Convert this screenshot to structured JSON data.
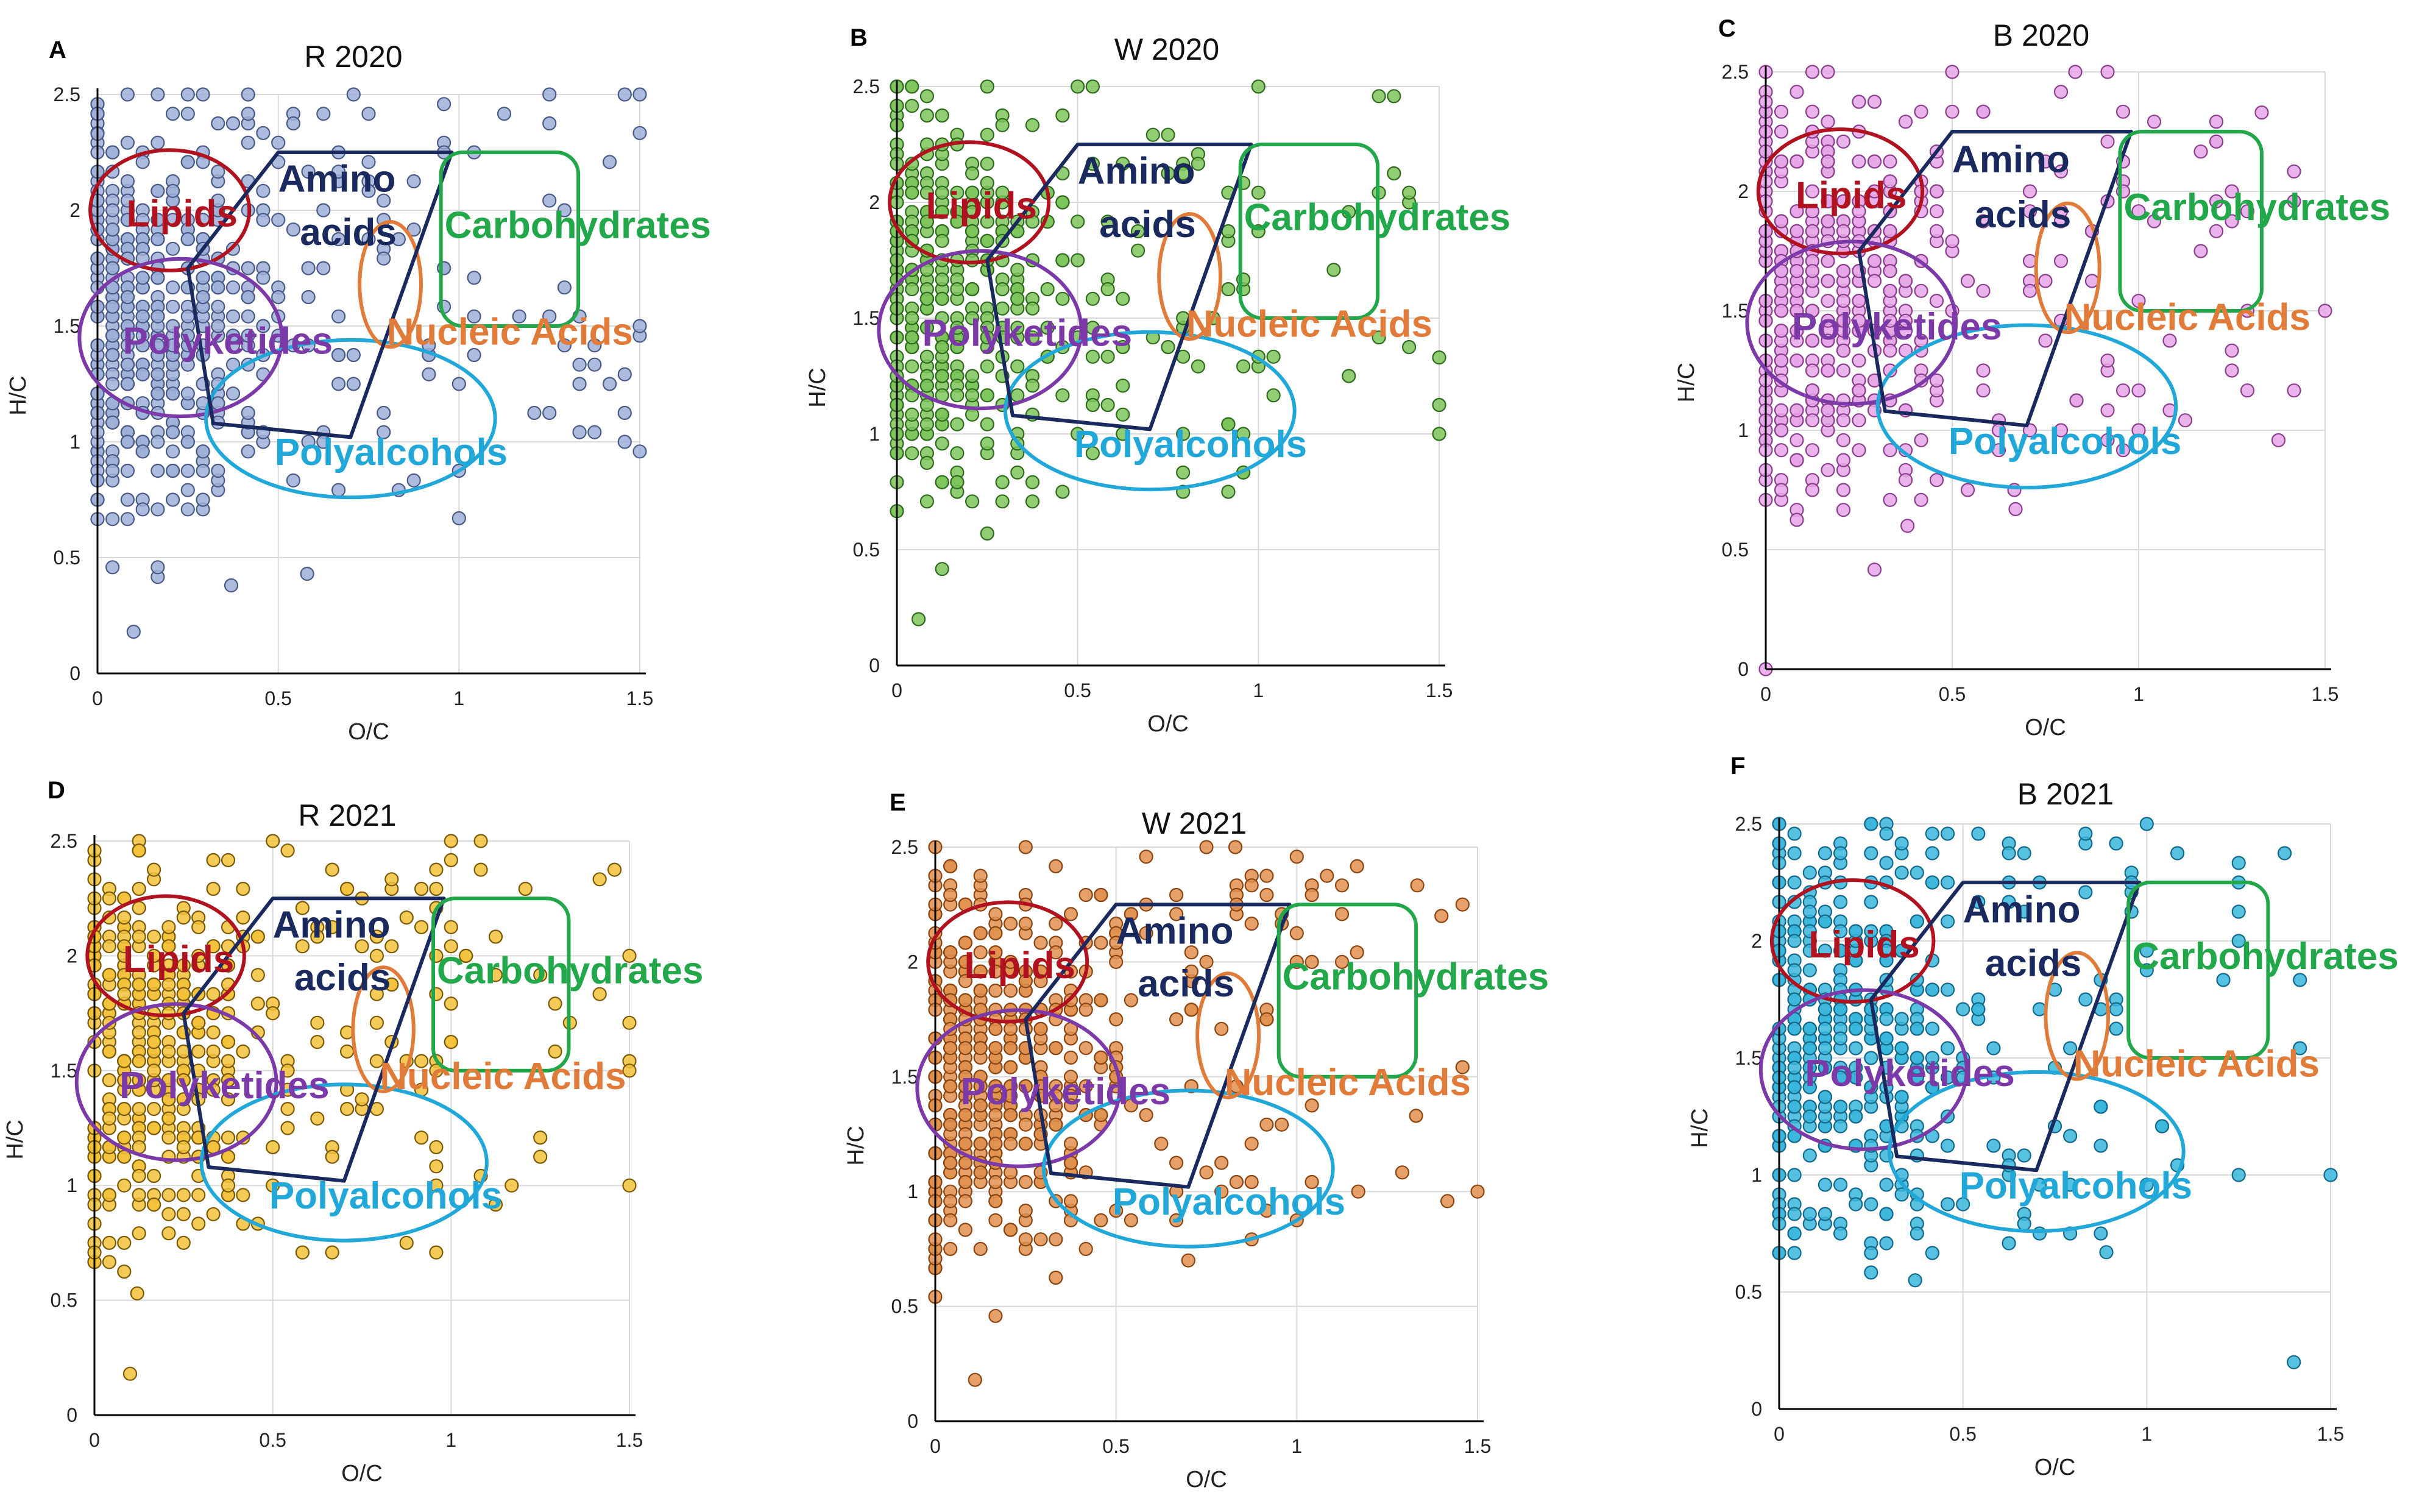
{
  "figure": {
    "description_label": "Van Krevelen diagrams"
  },
  "regions": [
    {
      "key": "lipids",
      "label": "Lipids",
      "color": "#b1121f"
    },
    {
      "key": "amino",
      "label_line1": "Amino",
      "label_line2": "acids",
      "color": "#1b2a5e"
    },
    {
      "key": "carbohydrates",
      "label": "Carbohydrates",
      "color": "#22a84a"
    },
    {
      "key": "nucleic",
      "label": "Nucleic Acids",
      "color": "#e07b39"
    },
    {
      "key": "polyketides",
      "label": "Polyketides",
      "color": "#7b3aa8"
    },
    {
      "key": "polyalcohols",
      "label": "Polyalcohols",
      "color": "#22a8d8"
    }
  ],
  "chart_data": [
    {
      "panel": "A",
      "title": "R 2020",
      "type": "scatter",
      "xlabel": "O/C",
      "ylabel": "H/C",
      "xlim": [
        0,
        1.5
      ],
      "ylim": [
        0,
        2.5
      ],
      "xticks": [
        "0",
        "0.5",
        "1",
        "1.5"
      ],
      "yticks": [
        "0",
        "0.5",
        "1",
        "1.5",
        "2",
        "2.5"
      ],
      "marker_fill": "#9fb0d8",
      "marker_edge": "#4a5a86",
      "n_points": 560,
      "seed": 11,
      "points_sample": [
        [
          0.1,
          0.18
        ],
        [
          0.37,
          0.38
        ],
        [
          0.58,
          0.43
        ],
        [
          1.5,
          2.5
        ],
        [
          1.5,
          1.5
        ],
        [
          1.0,
          0.67
        ],
        [
          0.0,
          2.33
        ],
        [
          0.25,
          2.5
        ]
      ]
    },
    {
      "panel": "B",
      "title": "W 2020",
      "type": "scatter",
      "xlabel": "O/C",
      "ylabel": "H/C",
      "xlim": [
        0,
        1.5
      ],
      "ylim": [
        0,
        2.5
      ],
      "xticks": [
        "0",
        "0.5",
        "1",
        "1.5"
      ],
      "yticks": [
        "0",
        "0.5",
        "1",
        "1.5",
        "2",
        "2.5"
      ],
      "marker_fill": "#7cc45a",
      "marker_edge": "#2f6b1e",
      "n_points": 420,
      "seed": 23,
      "points_sample": [
        [
          0.06,
          0.2
        ],
        [
          0.0,
          2.5
        ],
        [
          0.5,
          2.5
        ],
        [
          1.0,
          2.5
        ],
        [
          1.5,
          1.33
        ],
        [
          1.5,
          1.0
        ],
        [
          1.25,
          1.25
        ],
        [
          0.25,
          0.57
        ]
      ]
    },
    {
      "panel": "C",
      "title": "B 2020",
      "type": "scatter",
      "xlabel": "O/C",
      "ylabel": "H/C",
      "xlim": [
        0,
        1.5
      ],
      "ylim": [
        0,
        2.5
      ],
      "xticks": [
        "0",
        "0.5",
        "1",
        "1.5"
      ],
      "yticks": [
        "0",
        "0.5",
        "1",
        "1.5",
        "2",
        "2.5"
      ],
      "marker_fill": "#e6a6e8",
      "marker_edge": "#8a3f8c",
      "n_points": 480,
      "seed": 37,
      "points_sample": [
        [
          0.0,
          0.0
        ],
        [
          0.5,
          2.5
        ],
        [
          0.83,
          2.5
        ],
        [
          1.33,
          2.33
        ],
        [
          1.5,
          1.5
        ],
        [
          1.25,
          1.25
        ],
        [
          0.67,
          0.67
        ],
        [
          0.38,
          0.6
        ]
      ]
    },
    {
      "panel": "D",
      "title": "R 2021",
      "type": "scatter",
      "xlabel": "O/C",
      "ylabel": "H/C",
      "xlim": [
        0,
        1.5
      ],
      "ylim": [
        0,
        2.5
      ],
      "xticks": [
        "0",
        "0.5",
        "1",
        "1.5"
      ],
      "yticks": [
        "0",
        "0.5",
        "1",
        "1.5",
        "2",
        "2.5"
      ],
      "marker_fill": "#f2c23a",
      "marker_edge": "#7a5a08",
      "n_points": 430,
      "seed": 41,
      "points_sample": [
        [
          0.1,
          0.18
        ],
        [
          1.5,
          1.0
        ],
        [
          1.5,
          1.5
        ],
        [
          1.0,
          2.5
        ],
        [
          0.5,
          2.5
        ],
        [
          1.5,
          2.0
        ],
        [
          1.17,
          1.0
        ],
        [
          0.12,
          0.53
        ]
      ]
    },
    {
      "panel": "E",
      "title": "W 2021",
      "type": "scatter",
      "xlabel": "O/C",
      "ylabel": "H/C",
      "xlim": [
        0,
        1.5
      ],
      "ylim": [
        0,
        2.5
      ],
      "xticks": [
        "0",
        "0.5",
        "1",
        "1.5"
      ],
      "yticks": [
        "0",
        "0.5",
        "1",
        "1.5",
        "2",
        "2.5"
      ],
      "marker_fill": "#e0904f",
      "marker_edge": "#8a4512",
      "n_points": 520,
      "seed": 53,
      "points_sample": [
        [
          0.11,
          0.18
        ],
        [
          1.5,
          1.0
        ],
        [
          0.0,
          2.5
        ],
        [
          0.83,
          2.5
        ],
        [
          1.4,
          2.2
        ],
        [
          1.33,
          1.33
        ],
        [
          0.7,
          0.7
        ],
        [
          1.17,
          1.0
        ]
      ]
    },
    {
      "panel": "F",
      "title": "B 2021",
      "type": "scatter",
      "xlabel": "O/C",
      "ylabel": "H/C",
      "xlim": [
        0,
        1.5
      ],
      "ylim": [
        0,
        2.5
      ],
      "xticks": [
        "0",
        "0.5",
        "1",
        "1.5"
      ],
      "yticks": [
        "0",
        "0.5",
        "1",
        "1.5",
        "2",
        "2.5"
      ],
      "marker_fill": "#39b6dc",
      "marker_edge": "#146a88",
      "n_points": 440,
      "seed": 67,
      "points_sample": [
        [
          1.4,
          0.2
        ],
        [
          1.5,
          1.0
        ],
        [
          0.0,
          2.5
        ],
        [
          1.0,
          2.5
        ],
        [
          1.25,
          1.0
        ],
        [
          0.37,
          0.55
        ],
        [
          0.89,
          0.67
        ],
        [
          1.25,
          2.25
        ]
      ]
    }
  ]
}
